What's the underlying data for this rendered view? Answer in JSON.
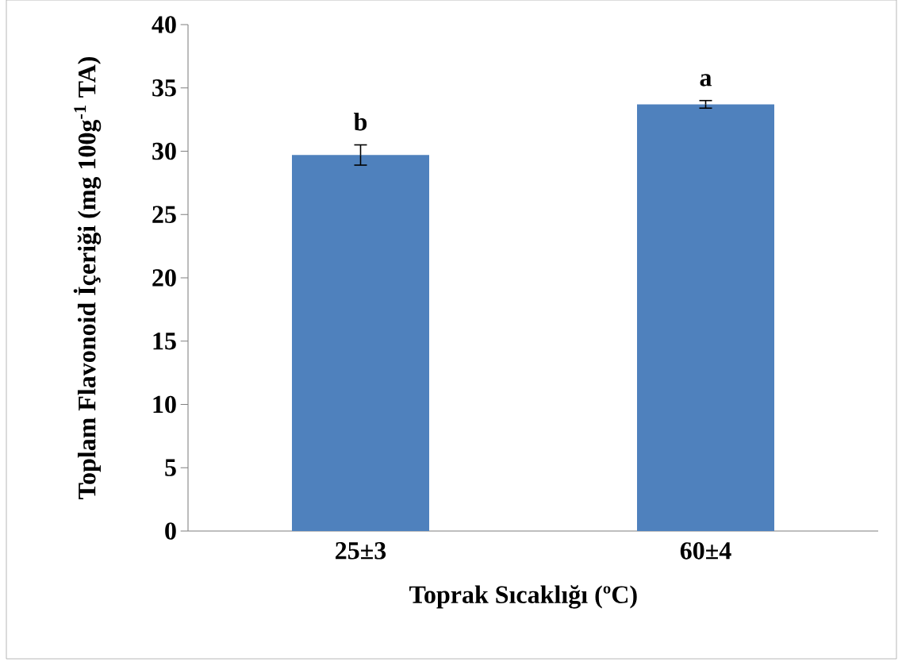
{
  "chart_data": {
    "type": "bar",
    "ylabel": "Toplam Flavonoid İçeriği (mg 100g$^{-1}$ TA)",
    "xlabel": "Toprak Sıcaklığı (ºC)",
    "categories": [
      "25±3",
      "60±4"
    ],
    "values": [
      29.7,
      33.7
    ],
    "errors": [
      0.8,
      0.3
    ],
    "color": "#4f81bd",
    "ylim": [
      0,
      40
    ],
    "yticks": [
      0,
      5,
      10,
      15,
      20,
      25,
      30,
      35,
      40
    ],
    "grid": false,
    "annotations": [
      "b",
      "a"
    ]
  }
}
